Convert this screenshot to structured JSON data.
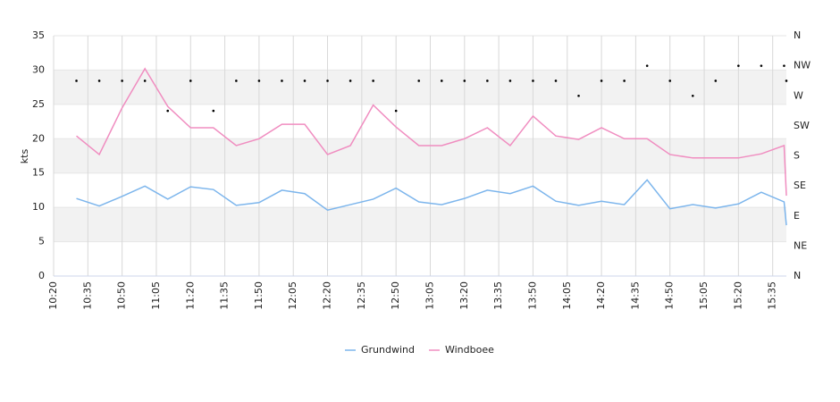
{
  "chart_data": {
    "type": "line",
    "y_label": "kts",
    "x": [
      "10:30",
      "10:40",
      "10:50",
      "11:00",
      "11:10",
      "11:20",
      "11:30",
      "11:40",
      "11:50",
      "12:00",
      "12:10",
      "12:20",
      "12:30",
      "12:40",
      "12:50",
      "13:00",
      "13:10",
      "13:20",
      "13:30",
      "13:40",
      "13:50",
      "14:00",
      "14:10",
      "14:20",
      "14:30",
      "14:40",
      "14:50",
      "15:00",
      "15:10",
      "15:20",
      "15:30",
      "15:40",
      "15:41"
    ],
    "xlim": [
      "10:20",
      "15:41"
    ],
    "xticks": [
      "10:20",
      "10:35",
      "10:50",
      "11:05",
      "11:20",
      "11:35",
      "11:50",
      "12:05",
      "12:20",
      "12:35",
      "12:50",
      "13:05",
      "13:20",
      "13:35",
      "13:50",
      "14:05",
      "14:20",
      "14:35",
      "14:50",
      "15:05",
      "15:20",
      "15:35"
    ],
    "ylim": [
      0,
      35
    ],
    "yticks": [
      0,
      5,
      10,
      15,
      20,
      25,
      30,
      35
    ],
    "y2lim": [
      0,
      360
    ],
    "y2ticks": [
      {
        "value": 0,
        "label": "N"
      },
      {
        "value": 45,
        "label": "NE"
      },
      {
        "value": 90,
        "label": "E"
      },
      {
        "value": 135,
        "label": "SE"
      },
      {
        "value": 180,
        "label": "S"
      },
      {
        "value": 225,
        "label": "SW"
      },
      {
        "value": 270,
        "label": "W"
      },
      {
        "value": 315,
        "label": "NW"
      },
      {
        "value": 360,
        "label": "N"
      }
    ],
    "grid": true,
    "bands": "#f2f2f2",
    "legend": "bottom",
    "series": [
      {
        "name": "Grundwind",
        "color": "#7cb5ec",
        "values": [
          11.3,
          10.2,
          11.6,
          13.1,
          11.2,
          13.0,
          12.6,
          10.3,
          10.7,
          12.5,
          12.0,
          9.6,
          10.4,
          11.2,
          12.8,
          10.8,
          10.4,
          11.3,
          12.5,
          12.0,
          13.1,
          10.9,
          10.3,
          10.9,
          10.4,
          14.0,
          9.8,
          10.4,
          9.9,
          10.5,
          12.2,
          10.8,
          7.4
        ]
      },
      {
        "name": "Windboee",
        "color": "#f08dc0",
        "values": [
          20.4,
          17.7,
          24.5,
          30.2,
          24.7,
          21.6,
          21.6,
          19.0,
          20.0,
          22.1,
          22.1,
          17.7,
          19.0,
          24.9,
          21.7,
          19.0,
          19.0,
          20.0,
          21.6,
          19.0,
          23.3,
          20.4,
          19.9,
          21.6,
          20.0,
          20.0,
          17.7,
          17.2,
          17.2,
          17.2,
          17.8,
          19.0,
          11.7
        ]
      }
    ],
    "direction": {
      "color": "#000000",
      "axis": "y2",
      "values": [
        292.5,
        292.5,
        292.5,
        292.5,
        247.5,
        292.5,
        247.5,
        292.5,
        292.5,
        292.5,
        292.5,
        292.5,
        292.5,
        292.5,
        247.5,
        292.5,
        292.5,
        292.5,
        292.5,
        292.5,
        292.5,
        292.5,
        270,
        292.5,
        292.5,
        315,
        292.5,
        270,
        292.5,
        315,
        315,
        315,
        292.5
      ]
    }
  }
}
